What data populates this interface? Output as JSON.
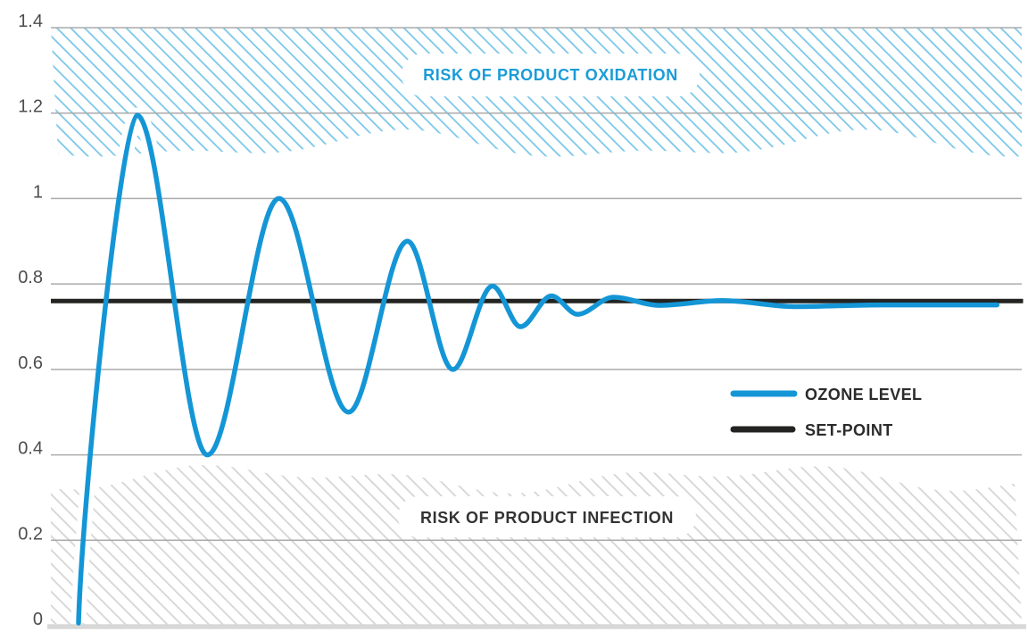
{
  "chart_data": {
    "type": "line",
    "title": "",
    "y_axis": {
      "min": 0,
      "max": 1.4,
      "grid": true,
      "ticks": [
        {
          "value": 1.4,
          "label": "1.4"
        },
        {
          "value": 1.2,
          "label": "1.2"
        },
        {
          "value": 1.0,
          "label": "1"
        },
        {
          "value": 0.8,
          "label": "0.8"
        },
        {
          "value": 0.6,
          "label": "0.6"
        },
        {
          "value": 0.4,
          "label": "0.4"
        },
        {
          "value": 0.2,
          "label": "0.2"
        },
        {
          "value": 0.0,
          "label": "0"
        }
      ],
      "tick_label_color": "#4D4D4D",
      "grid_color": "#ABABAB",
      "baseline_color": "#D8D8D8"
    },
    "x_axis": {
      "min": 0,
      "max": 100,
      "ticks": []
    },
    "set_point": {
      "label": "SET-POINT",
      "value": 0.76,
      "color": "#232321",
      "t_range": [
        0,
        100.6
      ]
    },
    "series": [
      {
        "name": "OZONE LEVEL",
        "color": "#1496D6",
        "keypoints": [
          {
            "t": 2.86,
            "v": 0.0
          },
          {
            "t": 8.9,
            "v": 1.195
          },
          {
            "t": 16.2,
            "v": 0.4
          },
          {
            "t": 23.6,
            "v": 1.0
          },
          {
            "t": 30.8,
            "v": 0.5
          },
          {
            "t": 36.9,
            "v": 0.9
          },
          {
            "t": 41.6,
            "v": 0.6
          },
          {
            "t": 45.7,
            "v": 0.795
          },
          {
            "t": 48.6,
            "v": 0.7
          },
          {
            "t": 51.8,
            "v": 0.772
          },
          {
            "t": 54.5,
            "v": 0.729
          },
          {
            "t": 58.2,
            "v": 0.769
          },
          {
            "t": 63.0,
            "v": 0.75
          },
          {
            "t": 69.5,
            "v": 0.761
          },
          {
            "t": 77.0,
            "v": 0.747
          },
          {
            "t": 86.0,
            "v": 0.751
          },
          {
            "t": 97.9,
            "v": 0.751
          }
        ]
      }
    ],
    "regions": [
      {
        "label": "RISK OF PRODUCT OXIDATION",
        "position": "top",
        "hatch_color": "#7CC7EA",
        "label_color": "#1B9CD8",
        "value_range": [
          1.122,
          1.4
        ]
      },
      {
        "label": "RISK OF PRODUCT INFECTION",
        "position": "bottom",
        "hatch_color": "#D5D5D5",
        "label_color": "#333333",
        "value_range": [
          0,
          0.345
        ]
      }
    ],
    "legend": [
      {
        "label": "OZONE LEVEL",
        "color": "#1496D6"
      },
      {
        "label": "SET-POINT",
        "color": "#232321"
      }
    ],
    "legend_position": "middle-right"
  }
}
